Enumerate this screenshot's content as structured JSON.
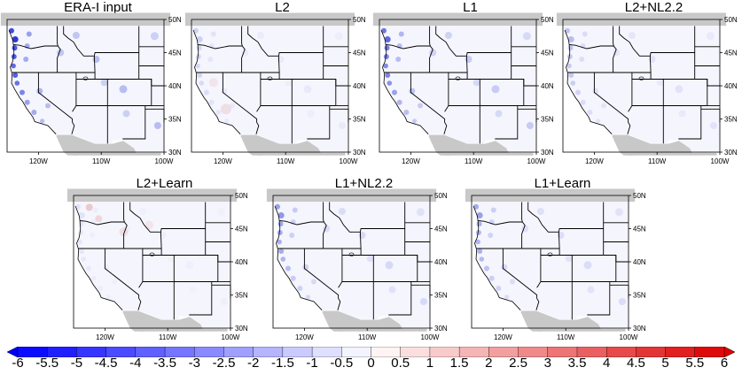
{
  "panels": [
    {
      "title": "ERA-I input",
      "intensity": 1.0
    },
    {
      "title": "L2",
      "intensity": 0.2
    },
    {
      "title": "L1",
      "intensity": 0.75
    },
    {
      "title": "L2+NL2.2",
      "intensity": 0.3
    },
    {
      "title": "L2+Learn",
      "intensity": 0.1
    },
    {
      "title": "L1+NL2.2",
      "intensity": 0.5
    },
    {
      "title": "L1+Learn",
      "intensity": 0.45
    }
  ],
  "lat_ticks": [
    "50N",
    "45N",
    "40N",
    "35N",
    "30N"
  ],
  "lon_ticks": [
    "120W",
    "110W",
    "100W"
  ],
  "colorbar": {
    "labels": [
      "-6",
      "-5.5",
      "-5",
      "-4.5",
      "-4",
      "-3.5",
      "-3",
      "-2.5",
      "-2",
      "-1.5",
      "-1",
      "-0.5",
      "0",
      "0.5",
      "1",
      "1.5",
      "2",
      "2.5",
      "3",
      "3.5",
      "4",
      "4.5",
      "5",
      "5.5",
      "6"
    ],
    "min": -6,
    "max": 6,
    "step": 0.5,
    "negative_color": "#0000ff",
    "zero_color": "#ffffff",
    "positive_color": "#dd0000"
  },
  "colors": {
    "land": "#f5f5fd",
    "ocean": "#ffffff",
    "masked": "#c8c8c8",
    "border": "#000000",
    "negative": "#2b3bd6",
    "positive": "#e0a0a0"
  }
}
